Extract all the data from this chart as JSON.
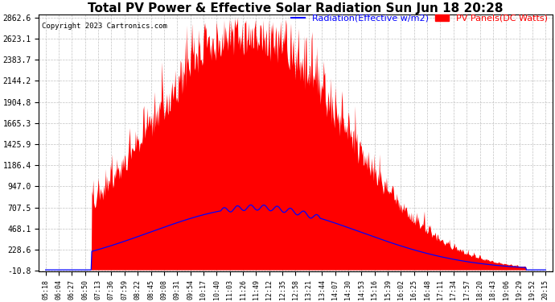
{
  "title": "Total PV Power & Effective Solar Radiation Sun Jun 18 20:28",
  "copyright": "Copyright 2023 Cartronics.com",
  "legend_radiation": "Radiation(Effective w/m2)",
  "legend_pv": "PV Panels(DC Watts)",
  "yticks": [
    -10.8,
    228.6,
    468.1,
    707.5,
    947.0,
    1186.4,
    1425.9,
    1665.3,
    1904.8,
    2144.2,
    2383.7,
    2623.1,
    2862.6
  ],
  "ymin": -10.8,
  "ymax": 2862.6,
  "xtick_labels": [
    "05:18",
    "06:04",
    "06:27",
    "06:50",
    "07:13",
    "07:36",
    "07:59",
    "08:22",
    "08:45",
    "09:08",
    "09:31",
    "09:54",
    "10:17",
    "10:40",
    "11:03",
    "11:26",
    "11:49",
    "12:12",
    "12:35",
    "12:58",
    "13:21",
    "13:44",
    "14:07",
    "14:30",
    "14:53",
    "15:16",
    "15:39",
    "16:02",
    "16:25",
    "16:48",
    "17:11",
    "17:34",
    "17:57",
    "18:20",
    "18:43",
    "19:06",
    "19:29",
    "19:52",
    "20:15"
  ],
  "pv_color": "#FF0000",
  "radiation_color": "#0000FF",
  "background_color": "#FFFFFF",
  "grid_color": "#AAAAAA",
  "title_fontsize": 11,
  "copyright_fontsize": 6.5,
  "legend_fontsize": 8,
  "tick_fontsize": 6,
  "ytick_fontsize": 7
}
